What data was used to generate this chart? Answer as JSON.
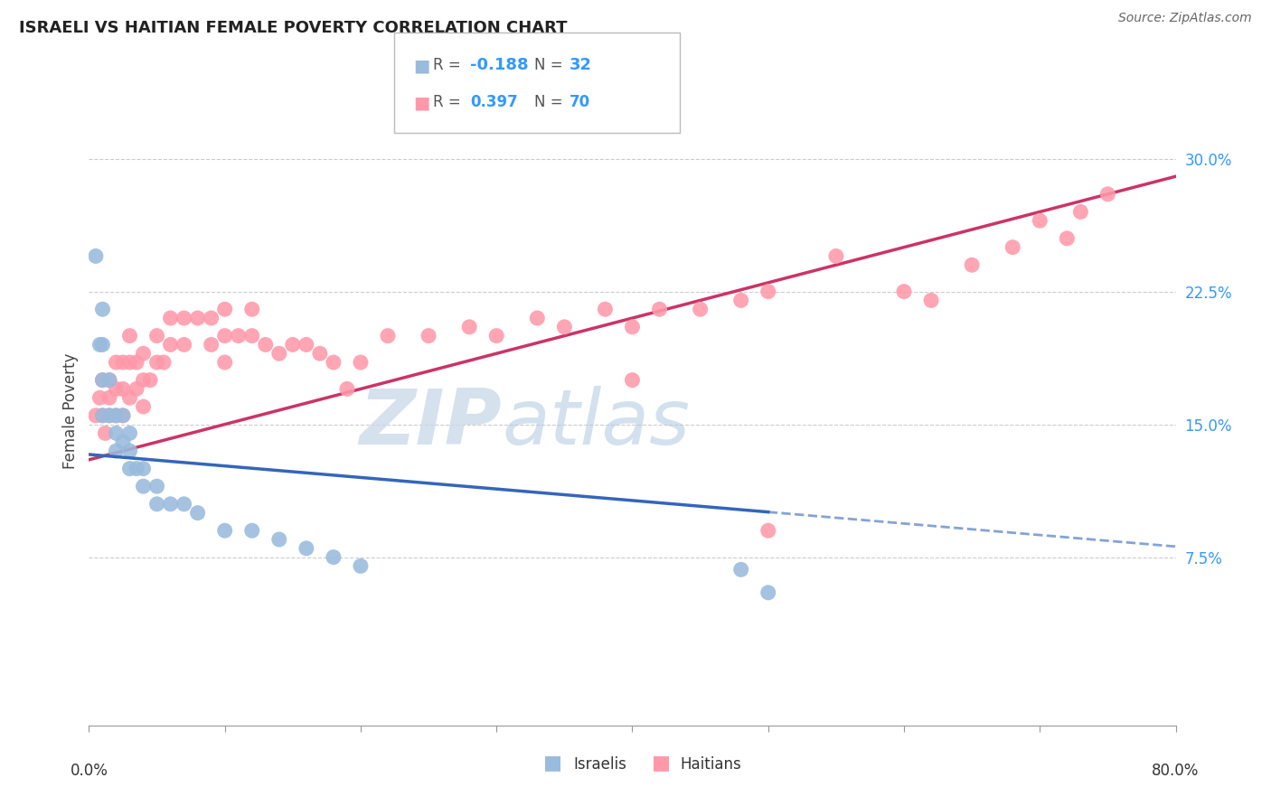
{
  "title": "ISRAELI VS HAITIAN FEMALE POVERTY CORRELATION CHART",
  "source": "Source: ZipAtlas.com",
  "ylabel": "Female Poverty",
  "ytick_labels": [
    "7.5%",
    "15.0%",
    "22.5%",
    "30.0%"
  ],
  "ytick_values": [
    0.075,
    0.15,
    0.225,
    0.3
  ],
  "xlim": [
    0.0,
    0.8
  ],
  "ylim": [
    -0.02,
    0.335
  ],
  "legend_israelis_R": "-0.188",
  "legend_israelis_N": "32",
  "legend_haitians_R": "0.397",
  "legend_haitians_N": "70",
  "color_israeli_fill": "#99BBDD",
  "color_haitian_fill": "#FF99AA",
  "color_israeli_line": "#3366BB",
  "color_haitian_line": "#CC3366",
  "color_right_axis": "#3399FF",
  "israelis_x": [
    0.005,
    0.008,
    0.01,
    0.01,
    0.01,
    0.01,
    0.015,
    0.015,
    0.02,
    0.02,
    0.02,
    0.025,
    0.025,
    0.03,
    0.03,
    0.03,
    0.035,
    0.04,
    0.04,
    0.05,
    0.05,
    0.06,
    0.07,
    0.08,
    0.1,
    0.12,
    0.14,
    0.16,
    0.18,
    0.2,
    0.48,
    0.5
  ],
  "israelis_y": [
    0.245,
    0.195,
    0.215,
    0.195,
    0.175,
    0.155,
    0.175,
    0.155,
    0.155,
    0.145,
    0.135,
    0.155,
    0.14,
    0.145,
    0.135,
    0.125,
    0.125,
    0.125,
    0.115,
    0.115,
    0.105,
    0.105,
    0.105,
    0.1,
    0.09,
    0.09,
    0.085,
    0.08,
    0.075,
    0.07,
    0.068,
    0.055
  ],
  "haitians_x": [
    0.005,
    0.008,
    0.01,
    0.01,
    0.012,
    0.015,
    0.015,
    0.015,
    0.02,
    0.02,
    0.02,
    0.025,
    0.025,
    0.025,
    0.03,
    0.03,
    0.03,
    0.035,
    0.035,
    0.04,
    0.04,
    0.04,
    0.045,
    0.05,
    0.05,
    0.055,
    0.06,
    0.06,
    0.07,
    0.07,
    0.08,
    0.09,
    0.09,
    0.1,
    0.1,
    0.1,
    0.11,
    0.12,
    0.12,
    0.13,
    0.14,
    0.15,
    0.16,
    0.17,
    0.18,
    0.19,
    0.2,
    0.22,
    0.25,
    0.28,
    0.3,
    0.33,
    0.35,
    0.38,
    0.4,
    0.4,
    0.42,
    0.45,
    0.48,
    0.5,
    0.5,
    0.55,
    0.6,
    0.62,
    0.65,
    0.68,
    0.7,
    0.72,
    0.73,
    0.75
  ],
  "haitians_y": [
    0.155,
    0.165,
    0.175,
    0.155,
    0.145,
    0.175,
    0.165,
    0.155,
    0.185,
    0.17,
    0.155,
    0.185,
    0.17,
    0.155,
    0.2,
    0.185,
    0.165,
    0.185,
    0.17,
    0.19,
    0.175,
    0.16,
    0.175,
    0.2,
    0.185,
    0.185,
    0.21,
    0.195,
    0.21,
    0.195,
    0.21,
    0.21,
    0.195,
    0.215,
    0.2,
    0.185,
    0.2,
    0.215,
    0.2,
    0.195,
    0.19,
    0.195,
    0.195,
    0.19,
    0.185,
    0.17,
    0.185,
    0.2,
    0.2,
    0.205,
    0.2,
    0.21,
    0.205,
    0.215,
    0.205,
    0.175,
    0.215,
    0.215,
    0.22,
    0.225,
    0.09,
    0.245,
    0.225,
    0.22,
    0.24,
    0.25,
    0.265,
    0.255,
    0.27,
    0.28
  ],
  "isr_slope": -0.065,
  "isr_intercept": 0.133,
  "hait_slope": 0.2,
  "hait_intercept": 0.13
}
